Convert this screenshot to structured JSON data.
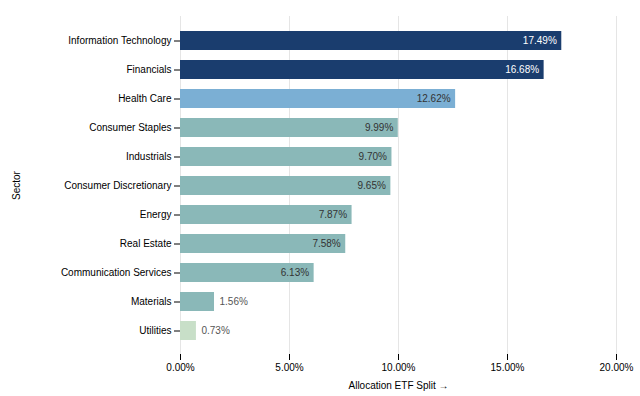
{
  "chart_data": {
    "type": "bar",
    "orientation": "horizontal",
    "categories": [
      "Information Technology",
      "Financials",
      "Health Care",
      "Consumer Staples",
      "Industrials",
      "Consumer Discretionary",
      "Energy",
      "Real Estate",
      "Communication Services",
      "Materials",
      "Utilities"
    ],
    "values": [
      17.49,
      16.68,
      12.62,
      9.99,
      9.7,
      9.65,
      7.87,
      7.58,
      6.13,
      1.56,
      0.73
    ],
    "value_labels": [
      "17.49%",
      "16.68%",
      "12.62%",
      "9.99%",
      "9.70%",
      "9.65%",
      "7.87%",
      "7.58%",
      "6.13%",
      "1.56%",
      "0.73%"
    ],
    "colors": [
      "#1a3d6e",
      "#1a3d6e",
      "#7bafd4",
      "#8ab8b8",
      "#8ab8b8",
      "#8ab8b8",
      "#8ab8b8",
      "#8ab8b8",
      "#8ab8b8",
      "#8ab8b8",
      "#c8dfc8"
    ],
    "xlabel": "Allocation ETF Split",
    "ylabel": "Sector",
    "xlim": [
      0,
      20
    ],
    "xticks": [
      {
        "value": 0,
        "label": "0.00%"
      },
      {
        "value": 5,
        "label": "5.00%"
      },
      {
        "value": 10,
        "label": "10.00%"
      },
      {
        "value": 15,
        "label": "15.00%"
      },
      {
        "value": 20,
        "label": "20.00%"
      }
    ],
    "grid": true,
    "data_labels": true
  }
}
